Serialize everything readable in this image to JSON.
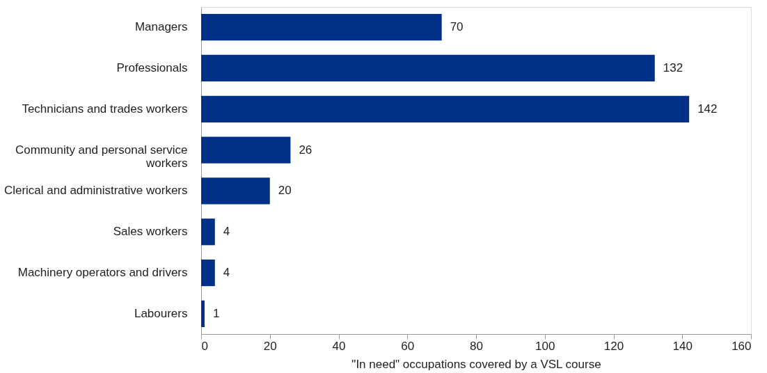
{
  "chart_data": {
    "type": "bar",
    "orientation": "horizontal",
    "categories": [
      "Managers",
      "Professionals",
      "Technicians and trades workers",
      "Community and personal service workers",
      "Clerical and administrative workers",
      "Sales workers",
      "Machinery operators and drivers",
      "Labourers"
    ],
    "values": [
      70,
      132,
      142,
      26,
      20,
      4,
      4,
      1
    ],
    "color": "#003087",
    "xlabel": "\"In need\" occupations covered by a VSL course",
    "xlim": [
      0,
      160
    ],
    "xticks": [
      0,
      20,
      40,
      60,
      80,
      100,
      120,
      140,
      160
    ],
    "data_labels": true,
    "grid": false
  }
}
